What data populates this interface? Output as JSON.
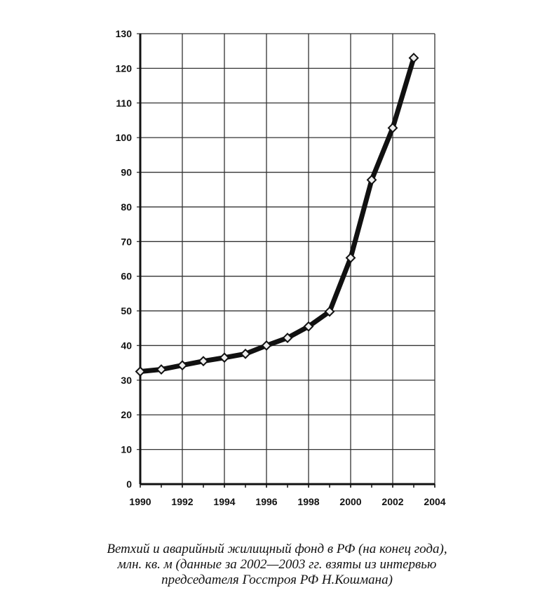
{
  "chart_data": {
    "type": "line",
    "title": "",
    "xlabel": "",
    "ylabel": "",
    "xlim": [
      1990,
      2004
    ],
    "ylim": [
      0,
      130
    ],
    "xticks": [
      1990,
      1992,
      1994,
      1996,
      1998,
      2000,
      2002,
      2004
    ],
    "yticks": [
      0,
      10,
      20,
      30,
      40,
      50,
      60,
      70,
      80,
      90,
      100,
      110,
      120,
      130
    ],
    "grid": true,
    "marker": "diamond",
    "line_color": "#111111",
    "x": [
      1990,
      1991,
      1992,
      1993,
      1994,
      1995,
      1996,
      1997,
      1998,
      1999,
      2000,
      2001,
      2002,
      2003
    ],
    "values": [
      32.5,
      33.1,
      34.3,
      35.5,
      36.5,
      37.6,
      40.0,
      42.2,
      45.5,
      49.8,
      65.3,
      87.8,
      102.8,
      123.0
    ]
  },
  "caption": {
    "lines": [
      "Ветхий и аварийный жилищный фонд в РФ (на конец года),",
      "млн. кв. м (данные за 2002—2003 гг. взяты из интервью",
      "председателя Госстроя РФ Н.Кошмана)"
    ]
  }
}
